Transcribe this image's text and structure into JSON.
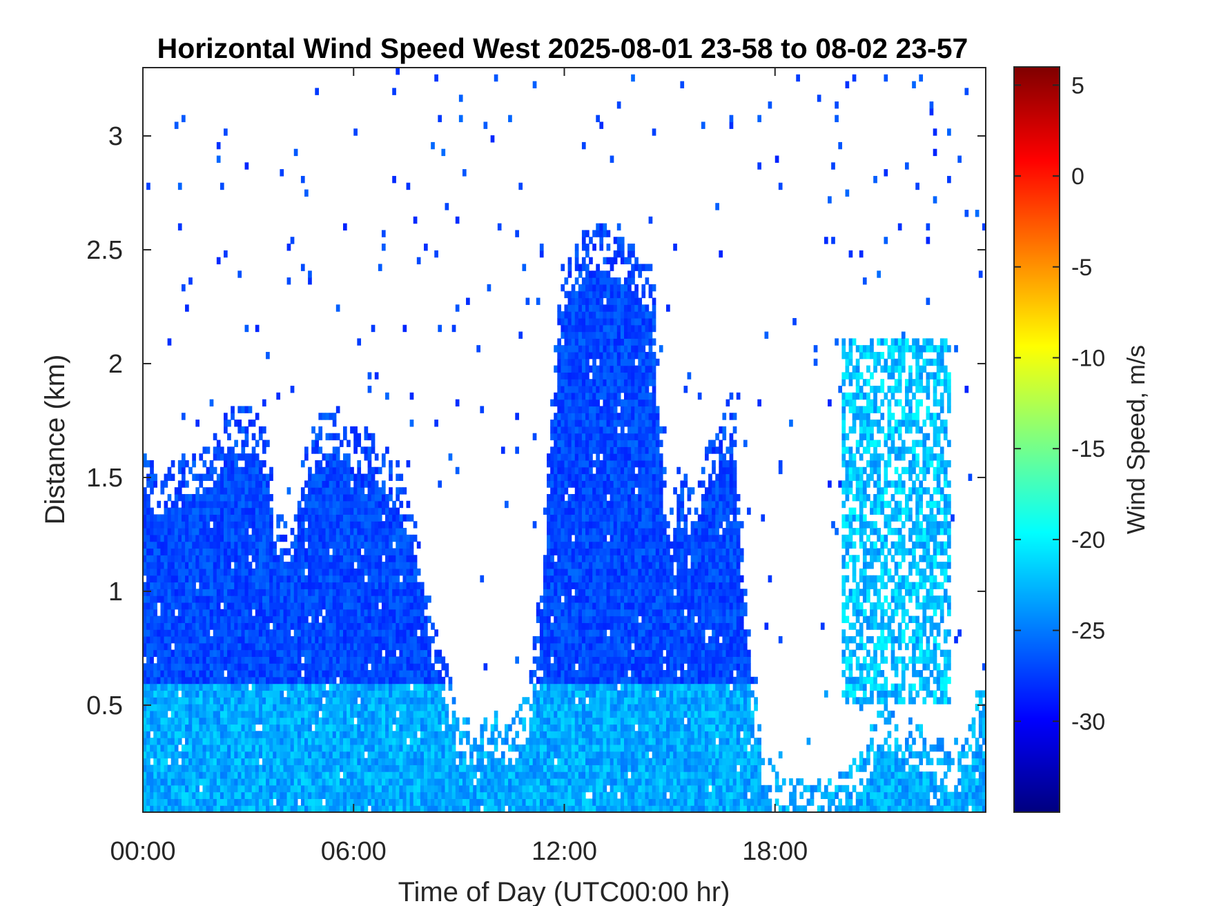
{
  "chart_data": {
    "type": "heatmap",
    "title": "Horizontal Wind Speed West 2025-08-01 23-58 to 08-02 23-57",
    "xlabel": "Time of Day (UTC00:00 hr)",
    "ylabel": "Distance (km)",
    "xlim": [
      0,
      24
    ],
    "ylim": [
      0.03,
      3.3
    ],
    "x_ticks": [
      {
        "value": 0,
        "label": "00:00"
      },
      {
        "value": 6,
        "label": "06:00"
      },
      {
        "value": 12,
        "label": "12:00"
      },
      {
        "value": 18,
        "label": "18:00"
      }
    ],
    "y_ticks": [
      {
        "value": 0.5,
        "label": "0.5"
      },
      {
        "value": 1,
        "label": "1"
      },
      {
        "value": 1.5,
        "label": "1.5"
      },
      {
        "value": 2,
        "label": "2"
      },
      {
        "value": 2.5,
        "label": "2.5"
      },
      {
        "value": 3,
        "label": "3"
      }
    ],
    "colorbar": {
      "label": "Wind Speed, m/s",
      "colormap": "jet",
      "range": [
        -35,
        6
      ],
      "ticks": [
        {
          "value": 5,
          "label": "5"
        },
        {
          "value": 0,
          "label": "0"
        },
        {
          "value": -5,
          "label": "-5"
        },
        {
          "value": -10,
          "label": "-10"
        },
        {
          "value": -15,
          "label": "-15"
        },
        {
          "value": -20,
          "label": "-20"
        },
        {
          "value": -25,
          "label": "-25"
        },
        {
          "value": -30,
          "label": "-30"
        }
      ]
    },
    "typical_speed": -27,
    "near_surface_speed": -23,
    "profile_top_km": [
      [
        0.0,
        1.5
      ],
      [
        0.5,
        1.4
      ],
      [
        1.0,
        1.5
      ],
      [
        1.5,
        1.5
      ],
      [
        2.0,
        1.55
      ],
      [
        2.5,
        1.7
      ],
      [
        3.0,
        1.7
      ],
      [
        3.5,
        1.6
      ],
      [
        3.8,
        1.25
      ],
      [
        4.2,
        1.2
      ],
      [
        4.6,
        1.5
      ],
      [
        5.0,
        1.65
      ],
      [
        5.5,
        1.7
      ],
      [
        6.0,
        1.6
      ],
      [
        6.5,
        1.6
      ],
      [
        7.0,
        1.5
      ],
      [
        7.5,
        1.35
      ],
      [
        7.9,
        1.1
      ],
      [
        8.2,
        0.8
      ],
      [
        8.6,
        0.6
      ],
      [
        9.0,
        0.35
      ],
      [
        9.5,
        0.3
      ],
      [
        10.0,
        0.35
      ],
      [
        10.5,
        0.3
      ],
      [
        11.0,
        0.45
      ],
      [
        11.3,
        0.9
      ],
      [
        11.6,
        1.6
      ],
      [
        11.9,
        2.3
      ],
      [
        12.5,
        2.45
      ],
      [
        13.0,
        2.5
      ],
      [
        13.5,
        2.45
      ],
      [
        14.0,
        2.4
      ],
      [
        14.5,
        2.3
      ],
      [
        14.8,
        1.5
      ],
      [
        15.0,
        1.2
      ],
      [
        15.3,
        1.5
      ],
      [
        15.6,
        1.3
      ],
      [
        16.0,
        1.5
      ],
      [
        16.4,
        1.6
      ],
      [
        16.8,
        1.8
      ],
      [
        17.0,
        1.2
      ],
      [
        17.3,
        0.6
      ],
      [
        17.6,
        0.25
      ],
      [
        18.0,
        0.1
      ],
      [
        19.0,
        0.03
      ],
      [
        20.0,
        0.1
      ],
      [
        20.5,
        0.2
      ],
      [
        21.0,
        0.4
      ],
      [
        22.0,
        0.3
      ],
      [
        23.0,
        0.2
      ],
      [
        23.5,
        0.3
      ],
      [
        24.0,
        0.6
      ]
    ],
    "aloft_band": {
      "x_range": [
        19.9,
        23.0
      ],
      "y_range": [
        0.5,
        2.1
      ],
      "speed": -22
    },
    "notes": "Dense field of westward wind speeds (mostly -30 to -20 m/s); blank regions are missing data."
  }
}
